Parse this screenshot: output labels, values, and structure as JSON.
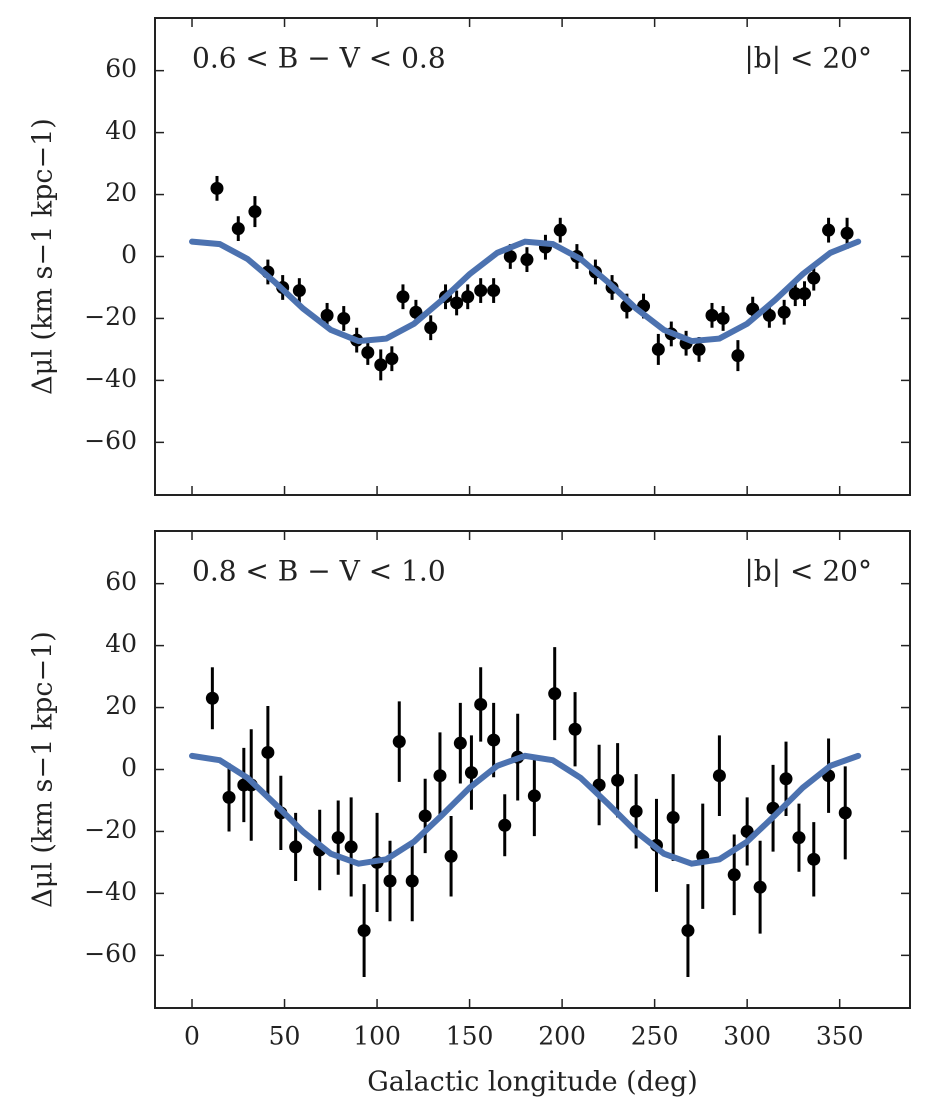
{
  "chart_data": [
    {
      "type": "scatter",
      "annotations": [
        "0.6 < B − V < 0.8",
        "|b| < 20°"
      ],
      "ylabel": "Δμl (km s−1 kpc−1)",
      "xlim": [
        -20,
        388
      ],
      "ylim": [
        -77,
        77
      ],
      "xticks": [
        0,
        50,
        100,
        150,
        200,
        250,
        300,
        350
      ],
      "show_xtick_labels": false,
      "yticks": [
        {
          "value": -60,
          "label": "−60"
        },
        {
          "value": -40,
          "label": "−40"
        },
        {
          "value": -20,
          "label": "−20"
        },
        0,
        20,
        40,
        60
      ],
      "series": [
        {
          "kind": "errorbar",
          "color": "#000000",
          "x": [
            13.5,
            25,
            34,
            41,
            49,
            58,
            73,
            82,
            89,
            95,
            102,
            108,
            114,
            121,
            129,
            137,
            143,
            149,
            156,
            163,
            172,
            181,
            191,
            199,
            208,
            218,
            227,
            235,
            244,
            252,
            259,
            267,
            274,
            281,
            287,
            295,
            303,
            312,
            320,
            326,
            331,
            336,
            344,
            354
          ],
          "values": [
            22,
            9,
            14.5,
            -5,
            -10,
            -11,
            -19,
            -20,
            -27,
            -31,
            -35,
            -33,
            -13,
            -18,
            -23,
            -13,
            -15,
            -13,
            -11,
            -11,
            0,
            -1,
            3,
            8.5,
            0,
            -5,
            -10,
            -16,
            -16,
            -30,
            -25,
            -28,
            -30,
            -19,
            -20,
            -32,
            -17,
            -19,
            -18,
            -12,
            -12,
            -7,
            8.5,
            7.5
          ],
          "errors": [
            4,
            4,
            5,
            4,
            4,
            4,
            4,
            4,
            4,
            4,
            5,
            4,
            4,
            4,
            4,
            4,
            4,
            4,
            4,
            4,
            4,
            4,
            4,
            4,
            4,
            4,
            4,
            4,
            4,
            5,
            4,
            4,
            4,
            4,
            4,
            5,
            4,
            4,
            4,
            4,
            4,
            4,
            4,
            5
          ]
        },
        {
          "kind": "line",
          "color": "#4c72b0",
          "x": [
            0,
            15,
            30,
            45,
            60,
            75,
            90,
            105,
            120,
            135,
            150,
            165,
            180,
            195,
            210,
            225,
            240,
            255,
            270,
            285,
            300,
            315,
            330,
            345,
            360
          ],
          "values": [
            4.8,
            4.0,
            -0.8,
            -8.4,
            -16.8,
            -23.7,
            -27.3,
            -26.5,
            -21.7,
            -14.1,
            -5.7,
            1.2,
            4.8,
            4.0,
            -0.8,
            -8.4,
            -16.8,
            -23.7,
            -27.3,
            -26.5,
            -21.7,
            -14.1,
            -5.7,
            1.2,
            4.8
          ]
        }
      ]
    },
    {
      "type": "scatter",
      "annotations": [
        "0.8 < B − V < 1.0",
        "|b| < 20°"
      ],
      "ylabel": "Δμl (km s−1 kpc−1)",
      "xlabel": "Galactic longitude (deg)",
      "xlim": [
        -20,
        388
      ],
      "ylim": [
        -77,
        77
      ],
      "xticks": [
        0,
        50,
        100,
        150,
        200,
        250,
        300,
        350
      ],
      "show_xtick_labels": true,
      "yticks": [
        {
          "value": -60,
          "label": "−60"
        },
        {
          "value": -40,
          "label": "−40"
        },
        {
          "value": -20,
          "label": "−20"
        },
        0,
        20,
        40,
        60
      ],
      "series": [
        {
          "kind": "errorbar",
          "color": "#000000",
          "x": [
            11,
            20,
            28,
            32,
            41,
            48,
            56,
            69,
            79,
            86,
            93,
            100,
            107,
            112,
            119,
            126,
            134,
            140,
            145,
            151,
            156,
            163,
            169,
            176,
            185,
            196,
            207,
            220,
            230,
            240,
            251,
            260,
            268,
            276,
            285,
            293,
            300,
            307,
            314,
            321,
            328,
            336,
            344,
            353
          ],
          "values": [
            23,
            -9,
            -5,
            -5,
            5.5,
            -14,
            -25,
            -26,
            -22,
            -25,
            -52,
            -30,
            -36,
            9,
            -36,
            -15,
            -2,
            -28,
            8.5,
            -1,
            21,
            9.5,
            -18,
            4,
            -8.5,
            24.5,
            13,
            -5,
            -3.5,
            -13.5,
            -24.5,
            -15.5,
            -52,
            -28,
            -2,
            -34,
            -20,
            -38,
            -12.5,
            -3,
            -22,
            -29,
            -2,
            -14
          ],
          "errors": [
            10,
            11,
            12,
            18,
            15,
            12,
            11,
            13,
            12,
            16,
            15,
            16,
            13,
            13,
            13,
            12,
            14,
            13,
            13,
            12,
            12,
            12,
            10,
            14,
            13,
            15,
            12,
            13,
            12,
            12,
            15,
            14,
            15,
            17,
            13,
            13,
            11,
            15,
            14,
            12,
            11,
            12,
            12,
            15
          ]
        },
        {
          "kind": "line",
          "color": "#4c72b0",
          "x": [
            0,
            15,
            30,
            45,
            60,
            75,
            90,
            105,
            120,
            135,
            150,
            165,
            180,
            195,
            210,
            225,
            240,
            255,
            270,
            285,
            300,
            315,
            330,
            345,
            360
          ],
          "values": [
            4.4,
            3.0,
            -2.7,
            -11.2,
            -20.1,
            -27.2,
            -30.4,
            -29.0,
            -23.3,
            -14.8,
            -5.9,
            1.2,
            4.4,
            3.0,
            -2.7,
            -11.2,
            -20.1,
            -27.2,
            -30.4,
            -29.0,
            -23.3,
            -14.8,
            -5.9,
            1.2,
            4.4
          ]
        }
      ]
    }
  ]
}
